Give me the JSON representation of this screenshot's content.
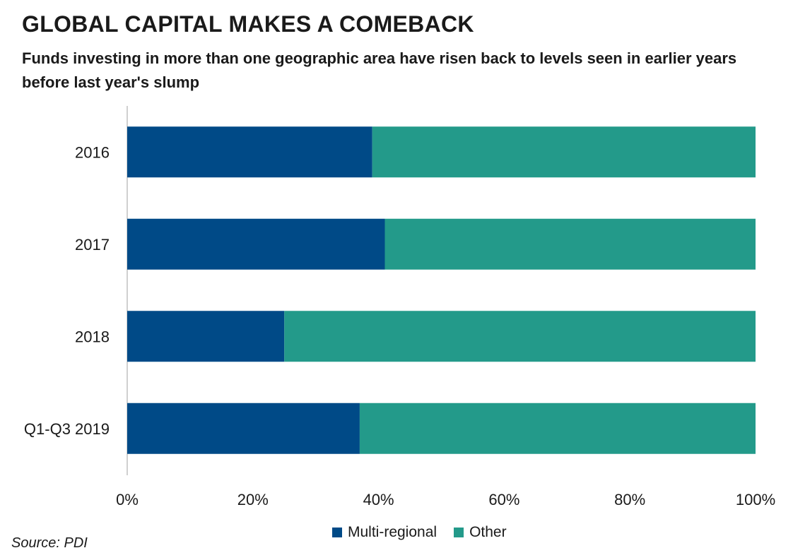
{
  "title": "GLOBAL CAPITAL MAKES A COMEBACK",
  "subtitle": "Funds investing in more than one geographic area have risen back to levels seen in earlier years before last year's  slump",
  "source": "Source: PDI",
  "colors": {
    "multi_regional": "#004a87",
    "other": "#239a8a",
    "axis": "#d0d0d0",
    "text": "#1a1a1a"
  },
  "chart_data": {
    "type": "bar",
    "orientation": "horizontal",
    "stacked": true,
    "percent": true,
    "categories": [
      "2016",
      "2017",
      "2018",
      "Q1-Q3 2019"
    ],
    "series": [
      {
        "name": "Multi-regional",
        "values": [
          39,
          41,
          25,
          37
        ]
      },
      {
        "name": "Other",
        "values": [
          61,
          59,
          75,
          63
        ]
      }
    ],
    "xlim": [
      0,
      100
    ],
    "xticks": [
      "0%",
      "20%",
      "40%",
      "60%",
      "80%",
      "100%"
    ],
    "legend_position": "bottom",
    "grid": false
  }
}
